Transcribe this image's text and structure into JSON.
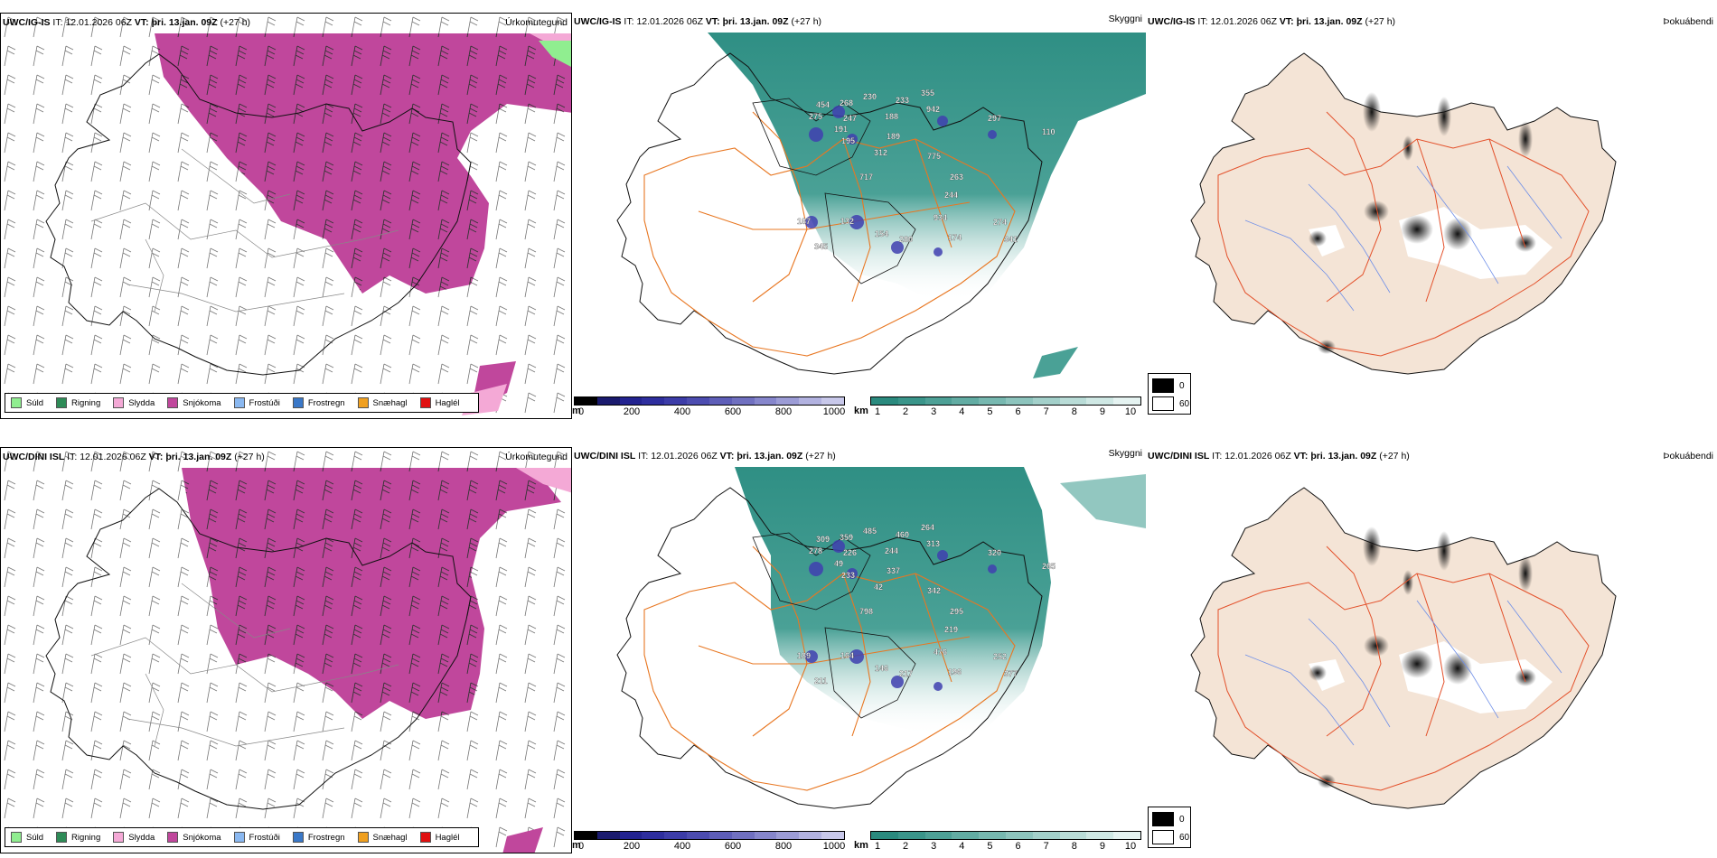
{
  "rows": [
    {
      "model": "UWC/IG-IS",
      "it_label": "IT:",
      "it_value": "12.01.2026 06Z",
      "vt_label": "VT:",
      "vt_value": "þri. 13.jan. 09Z",
      "lead": "(+27 h)",
      "station_labels": [
        "454",
        "268",
        "230",
        "233",
        "355",
        "942",
        "275",
        "247",
        "188",
        "297",
        "191",
        "195",
        "189",
        "110",
        "312",
        "775",
        "717",
        "263",
        "244",
        "187",
        "132",
        "934",
        "274",
        "154",
        "280",
        "174",
        "341",
        "345"
      ]
    },
    {
      "model": "UWC/DINI ISL",
      "it_label": "IT:",
      "it_value": "12.01.2026 06Z",
      "vt_label": "VT:",
      "vt_value": "þri. 13.jan. 09Z",
      "lead": "(+27 h)",
      "station_labels": [
        "309",
        "359",
        "485",
        "460",
        "264",
        "313",
        "278",
        "226",
        "244",
        "320",
        "49",
        "233",
        "337",
        "265",
        "42",
        "342",
        "798",
        "295",
        "219",
        "189",
        "164",
        "476",
        "252",
        "146",
        "217",
        "196",
        "377",
        "211"
      ]
    }
  ],
  "panel_titles": {
    "precip": "Úrkomutegund",
    "visibility": "Skyggni",
    "fog": "Þokuábendi"
  },
  "precip_legend": [
    {
      "label": "Súld",
      "color": "#90ee90"
    },
    {
      "label": "Rigning",
      "color": "#2e8b57"
    },
    {
      "label": "Slydda",
      "color": "#f4a9d6"
    },
    {
      "label": "Snjókoma",
      "color": "#c0479c"
    },
    {
      "label": "Frostúði",
      "color": "#8ab8f0"
    },
    {
      "label": "Frostregn",
      "color": "#3a78c8"
    },
    {
      "label": "Snæhagl",
      "color": "#f0a020"
    },
    {
      "label": "Haglél",
      "color": "#e01010"
    }
  ],
  "elevation_bar": {
    "unit": "m",
    "ticks": [
      "0",
      "200",
      "400",
      "600",
      "800",
      "1000"
    ],
    "colors": [
      "#000000",
      "#1a1a6e",
      "#232390",
      "#2e2e9e",
      "#3c3ca8",
      "#4c4cb0",
      "#5e5eb8",
      "#7070c0",
      "#8686cc",
      "#9c9cd6",
      "#b2b2e0",
      "#c8c8ea"
    ]
  },
  "visibility_bar": {
    "unit": "km",
    "ticks": [
      "1",
      "2",
      "3",
      "4",
      "5",
      "6",
      "7",
      "8",
      "9",
      "10"
    ],
    "colors": [
      "#2a8a7e",
      "#3a958a",
      "#4da096",
      "#62aca3",
      "#77b8b0",
      "#8dc4bd",
      "#a3d0ca",
      "#b9dcd7",
      "#cfe8e4",
      "#e5f3f1"
    ]
  },
  "fog_key": {
    "items": [
      {
        "label": "0",
        "color": "#000000"
      },
      {
        "label": "60",
        "color": "#ffffff"
      }
    ]
  },
  "colors": {
    "snow": "#c0479c",
    "sleet": "#f4a9d6",
    "drizzle": "#90ee90",
    "rain": "#2e8b57",
    "visibility": "#2f8f84",
    "land_fog": "#f4e4d6",
    "roads": "#e87722",
    "roads_fog": "#e3502a",
    "rivers": "#6f8fe8",
    "glacier": "#6a6ac8"
  }
}
